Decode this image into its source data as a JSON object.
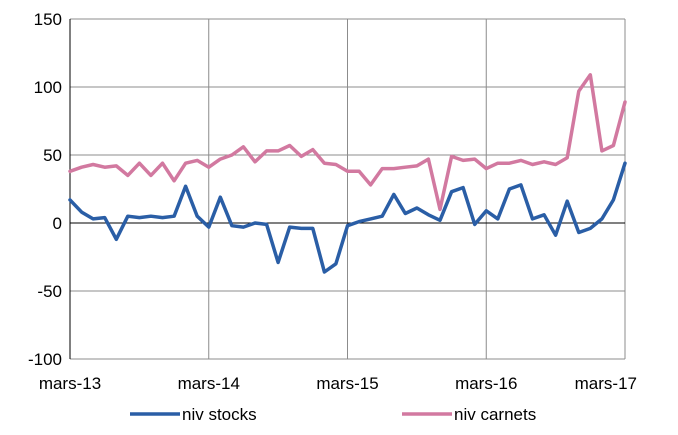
{
  "chart_data": {
    "type": "line",
    "x_labels": [
      "mars-13",
      "mars-14",
      "mars-15",
      "mars-16",
      "mars-17"
    ],
    "y_ticks": [
      150,
      100,
      50,
      0,
      -50,
      -100
    ],
    "ylim": [
      -100,
      150
    ],
    "grid": true,
    "legend_position": "bottom",
    "series": [
      {
        "name": "niv stocks",
        "color": "#2a5ea6",
        "values": [
          17,
          8,
          3,
          4,
          -12,
          5,
          4,
          5,
          4,
          5,
          27,
          5,
          -3,
          19,
          -2,
          -3,
          0,
          -1,
          -29,
          -3,
          -4,
          -4,
          -36,
          -30,
          -2,
          1,
          3,
          5,
          21,
          7,
          11,
          6,
          2,
          23,
          26,
          -1,
          9,
          3,
          25,
          28,
          3,
          6,
          -9,
          16,
          -7,
          -4,
          3,
          17,
          44
        ]
      },
      {
        "name": "niv carnets",
        "color": "#d279a0",
        "values": [
          38,
          41,
          43,
          41,
          42,
          35,
          44,
          35,
          44,
          31,
          44,
          46,
          41,
          47,
          50,
          56,
          45,
          53,
          53,
          57,
          49,
          54,
          44,
          43,
          38,
          38,
          28,
          40,
          40,
          41,
          42,
          47,
          10,
          49,
          46,
          47,
          40,
          44,
          44,
          46,
          43,
          45,
          43,
          48,
          97,
          109,
          53,
          57,
          89
        ]
      }
    ]
  }
}
